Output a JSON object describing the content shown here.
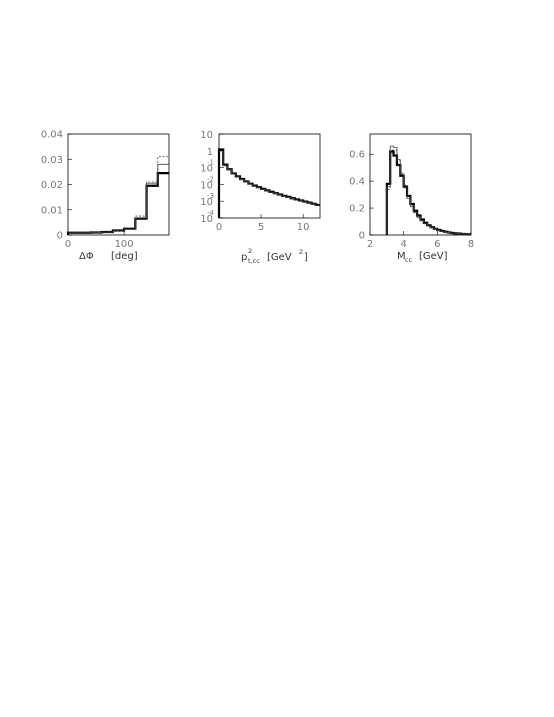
{
  "chart_data": [
    {
      "type": "line",
      "subtype": "step-histogram",
      "title": "",
      "xlabel": "ΔΦ",
      "xunit": "[deg]",
      "ylabel": "",
      "xlim": [
        0,
        180
      ],
      "ylim": [
        0,
        0.04
      ],
      "xticks": [
        "0",
        "100"
      ],
      "yticks": [
        "0",
        "0.01",
        "0.02",
        "0.03",
        "0.04"
      ],
      "grid": false,
      "x_edges": [
        0,
        20,
        40,
        60,
        80,
        100,
        120,
        140,
        160,
        180
      ],
      "series": [
        {
          "style": "thick solid",
          "values": [
            0.0009,
            0.0009,
            0.001,
            0.0012,
            0.0018,
            0.0025,
            0.0065,
            0.0195,
            0.0245
          ]
        },
        {
          "style": "thin solid",
          "values": [
            0.0009,
            0.0009,
            0.001,
            0.0012,
            0.0016,
            0.0023,
            0.0068,
            0.0205,
            0.028
          ]
        },
        {
          "style": "dotted",
          "values": [
            0.0008,
            0.0008,
            0.0009,
            0.0011,
            0.0014,
            0.0022,
            0.0075,
            0.021,
            0.031
          ]
        }
      ]
    },
    {
      "type": "line",
      "subtype": "step-histogram",
      "title": "",
      "xlabel": "p²t,cc",
      "xlabel_base": "p",
      "xlabel_sup": "2",
      "xlabel_sub": "t,cc",
      "xunit_base": "[GeV",
      "xunit_sup": "2",
      "xunit_close": "]",
      "ylabel": "",
      "yscale": "log",
      "xlim": [
        0,
        12
      ],
      "ylim": [
        0.0001,
        10
      ],
      "xticks": [
        "0",
        "5",
        "10"
      ],
      "yticks": [
        {
          "base": "10",
          "exp": ""
        },
        {
          "base": "1",
          "exp": ""
        },
        {
          "base": "10",
          "exp": "-1"
        },
        {
          "base": "10",
          "exp": "-2"
        },
        {
          "base": "10",
          "exp": "-3"
        },
        {
          "base": "10",
          "exp": "-4"
        }
      ],
      "grid": false,
      "x_edges": [
        0,
        0.5,
        1,
        1.5,
        2,
        2.5,
        3,
        3.5,
        4,
        4.5,
        5,
        5.5,
        6,
        6.5,
        7,
        7.5,
        8,
        8.5,
        9,
        9.5,
        10,
        10.5,
        11,
        11.5,
        12
      ],
      "series": [
        {
          "style": "thick solid",
          "values": [
            1.2,
            0.15,
            0.08,
            0.045,
            0.03,
            0.021,
            0.015,
            0.011,
            0.0085,
            0.0068,
            0.0054,
            0.0044,
            0.0036,
            0.003,
            0.0025,
            0.0021,
            0.0018,
            0.0015,
            0.00128,
            0.0011,
            0.00095,
            0.00082,
            0.0007,
            0.0006
          ]
        },
        {
          "style": "thin solid",
          "values": [
            1.0,
            0.13,
            0.075,
            0.042,
            0.028,
            0.02,
            0.014,
            0.0105,
            0.008,
            0.0064,
            0.0051,
            0.0042,
            0.0034,
            0.0028,
            0.0024,
            0.002,
            0.0017,
            0.0014,
            0.0012,
            0.00104,
            0.0009,
            0.00078,
            0.00067,
            0.00057
          ]
        }
      ]
    },
    {
      "type": "line",
      "subtype": "step-histogram",
      "title": "",
      "xlabel": "Mcc",
      "xlabel_base": "M",
      "xlabel_sub": "cc",
      "xunit": "[GeV]",
      "ylabel": "",
      "xlim": [
        2,
        8
      ],
      "ylim": [
        0,
        0.75
      ],
      "xticks": [
        "2",
        "4",
        "6",
        "8"
      ],
      "yticks": [
        "0",
        "0.2",
        "0.4",
        "0.6"
      ],
      "grid": false,
      "x_edges": [
        3.0,
        3.2,
        3.4,
        3.6,
        3.8,
        4.0,
        4.2,
        4.4,
        4.6,
        4.8,
        5.0,
        5.2,
        5.4,
        5.6,
        5.8,
        6.0,
        6.2,
        6.4,
        6.6,
        6.8,
        7.0,
        7.2,
        7.4,
        7.6,
        7.8,
        8.0
      ],
      "series": [
        {
          "style": "thick solid",
          "values": [
            0.38,
            0.62,
            0.59,
            0.52,
            0.44,
            0.36,
            0.29,
            0.23,
            0.18,
            0.145,
            0.115,
            0.09,
            0.072,
            0.058,
            0.046,
            0.037,
            0.03,
            0.024,
            0.019,
            0.015,
            0.012,
            0.01,
            0.008,
            0.006,
            0.005
          ]
        },
        {
          "style": "thin solid",
          "values": [
            0.36,
            0.66,
            0.65,
            0.56,
            0.45,
            0.35,
            0.27,
            0.21,
            0.165,
            0.13,
            0.105,
            0.083,
            0.066,
            0.053,
            0.043,
            0.035,
            0.028,
            0.022,
            0.018,
            0.014,
            0.011,
            0.009,
            0.007,
            0.006,
            0.005
          ]
        },
        {
          "style": "dotted",
          "values": [
            0.34,
            0.63,
            0.63,
            0.55,
            0.46,
            0.37,
            0.29,
            0.22,
            0.17,
            0.135,
            0.108,
            0.085,
            0.068,
            0.055,
            0.044,
            0.036,
            0.029,
            0.023,
            0.018,
            0.015,
            0.012,
            0.009,
            0.007,
            0.006,
            0.005
          ]
        }
      ]
    }
  ]
}
